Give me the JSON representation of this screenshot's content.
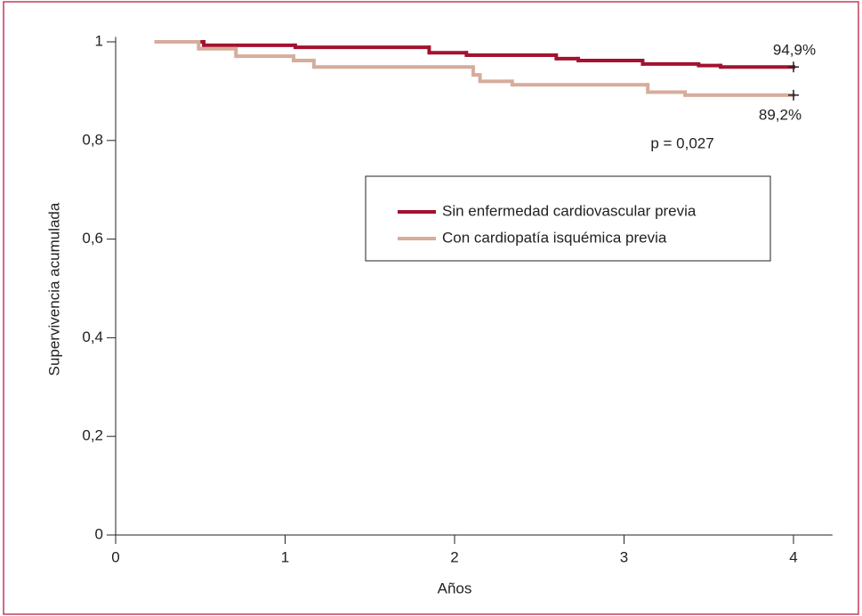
{
  "chart_data": {
    "type": "step",
    "xlabel": "Años",
    "ylabel": "Supervivencia acumulada",
    "annotations": [
      "94,9%",
      "89,2%",
      "p = 0,027"
    ],
    "xlim": [
      0,
      4.23
    ],
    "ylim": [
      0,
      1.01
    ],
    "xticks": [
      0,
      1,
      2,
      3,
      4
    ],
    "yticks": [
      0,
      {
        "value": 0.2,
        "label": "0,2"
      },
      {
        "value": 0.4,
        "label": "0,4"
      },
      {
        "value": 0.6,
        "label": "0,6"
      },
      {
        "value": 0.8,
        "label": "0,8"
      },
      1
    ],
    "series": [
      {
        "name": "Sin enfermedad cardiovascular previa",
        "color": "#a3122f",
        "x": [
          0.23,
          0.52,
          1.06,
          1.85,
          2.07,
          2.6,
          2.73,
          3.11,
          3.44,
          3.57,
          4.0
        ],
        "values": [
          1.0,
          0.993,
          0.989,
          0.978,
          0.973,
          0.966,
          0.962,
          0.955,
          0.952,
          0.949,
          0.949
        ]
      },
      {
        "name": "Con cardiopatía isquémica previa",
        "color": "#d6ac9b",
        "x": [
          0.23,
          0.49,
          0.71,
          1.05,
          1.17,
          2.11,
          2.15,
          2.34,
          3.14,
          3.36,
          4.0
        ],
        "values": [
          1.0,
          0.986,
          0.971,
          0.962,
          0.949,
          0.933,
          0.92,
          0.913,
          0.898,
          0.892,
          0.892
        ]
      }
    ]
  }
}
